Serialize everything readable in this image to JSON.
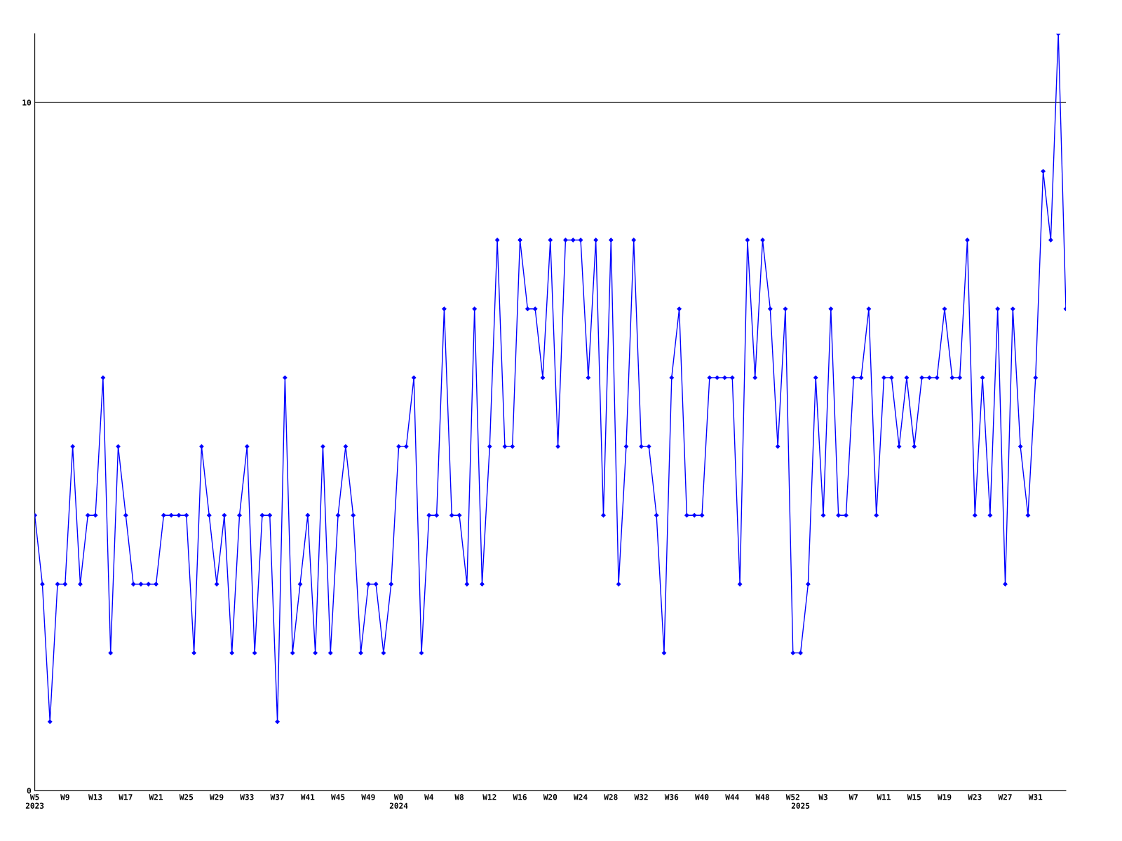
{
  "chart_data": {
    "type": "line",
    "categories": [
      "W5\n2023",
      null,
      null,
      null,
      "W9",
      null,
      null,
      null,
      "W13",
      null,
      null,
      null,
      "W17",
      null,
      null,
      null,
      "W21",
      null,
      null,
      null,
      "W25",
      null,
      null,
      null,
      "W29",
      null,
      null,
      null,
      "W33",
      null,
      null,
      null,
      "W37",
      null,
      null,
      null,
      "W41",
      null,
      null,
      null,
      "W45",
      null,
      null,
      null,
      "W49",
      null,
      null,
      null,
      "W0\n2024",
      null,
      null,
      null,
      "W4",
      null,
      null,
      null,
      "W8",
      null,
      null,
      null,
      "W12",
      null,
      null,
      null,
      "W16",
      null,
      null,
      null,
      "W20",
      null,
      null,
      null,
      "W24",
      null,
      null,
      null,
      "W28",
      null,
      null,
      null,
      "W32",
      null,
      null,
      null,
      "W36",
      null,
      null,
      null,
      "W40",
      null,
      null,
      null,
      "W44",
      null,
      null,
      null,
      "W48",
      null,
      null,
      null,
      "W52",
      "\n2025",
      null,
      null,
      "W3",
      null,
      null,
      null,
      "W7",
      null,
      null,
      null,
      "W11",
      null,
      null,
      null,
      "W15",
      null,
      null,
      null,
      "W19",
      null,
      null,
      null,
      "W23",
      null,
      null,
      null,
      "W27",
      null,
      null,
      null,
      "W31",
      null,
      null,
      null,
      null
    ],
    "series": [
      {
        "color": "#0000ff",
        "values": [
          4,
          3,
          1,
          3,
          3,
          5,
          3,
          4,
          4,
          6,
          2,
          5,
          4,
          3,
          3,
          3,
          3,
          4,
          4,
          4,
          4,
          2,
          5,
          4,
          3,
          4,
          2,
          4,
          5,
          2,
          4,
          4,
          1,
          6,
          2,
          3,
          4,
          2,
          5,
          2,
          4,
          5,
          4,
          2,
          3,
          3,
          2,
          3,
          5,
          5,
          6,
          2,
          4,
          4,
          7,
          4,
          4,
          3,
          7,
          3,
          5,
          8,
          5,
          5,
          8,
          7,
          7,
          6,
          8,
          5,
          8,
          8,
          8,
          6,
          8,
          4,
          8,
          3,
          5,
          8,
          5,
          5,
          4,
          2,
          6,
          7,
          4,
          4,
          4,
          6,
          6,
          6,
          6,
          3,
          8,
          6,
          8,
          7,
          5,
          7,
          2,
          2,
          3,
          6,
          4,
          7,
          4,
          4,
          6,
          6,
          7,
          4,
          6,
          6,
          5,
          6,
          5,
          6,
          6,
          6,
          7,
          6,
          6,
          8,
          4,
          6,
          4,
          7,
          3,
          7,
          5,
          4,
          6,
          9,
          8,
          11,
          7
        ]
      }
    ],
    "ylim": [
      0,
      11
    ],
    "yticks": [
      0,
      10
    ],
    "grid": "y",
    "marker": "diamond",
    "line_style": "solid"
  }
}
